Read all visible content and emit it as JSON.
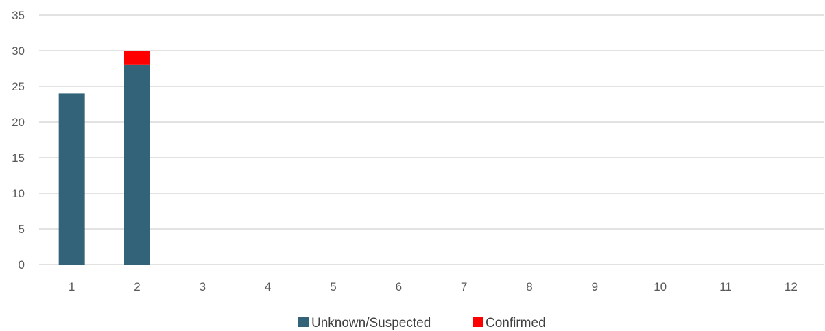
{
  "chart_data": {
    "type": "bar",
    "stacked": true,
    "categories": [
      "1",
      "2",
      "3",
      "4",
      "5",
      "6",
      "7",
      "8",
      "9",
      "10",
      "11",
      "12"
    ],
    "series": [
      {
        "name": "Unknown/Suspected",
        "color": "#336378",
        "values": [
          24,
          28,
          0,
          0,
          0,
          0,
          0,
          0,
          0,
          0,
          0,
          0
        ]
      },
      {
        "name": "Confirmed",
        "color": "#ff0000",
        "values": [
          0,
          2,
          0,
          0,
          0,
          0,
          0,
          0,
          0,
          0,
          0,
          0
        ]
      }
    ],
    "yticks": [
      "0",
      "5",
      "10",
      "15",
      "20",
      "25",
      "30",
      "35"
    ],
    "ylim": [
      0,
      35
    ],
    "grid": true,
    "legend_position": "bottom-center"
  }
}
